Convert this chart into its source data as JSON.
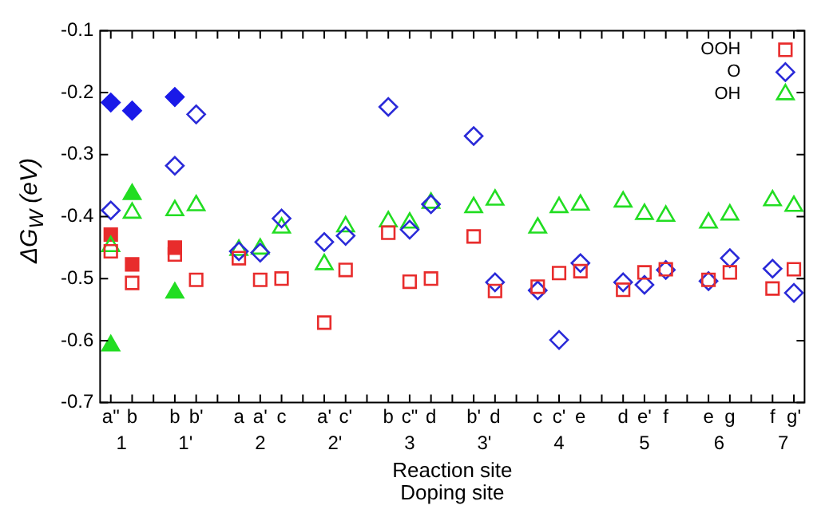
{
  "chart_data": {
    "type": "scatter",
    "xlabel": "Reaction site",
    "x2label": "Doping site",
    "ylabel": "ΔG$_{W}$ (eV)",
    "categories": [
      "a\"",
      "b",
      null,
      "b",
      "b'",
      null,
      "a",
      "a'",
      "c",
      null,
      "a'",
      "c'",
      null,
      "b",
      "c\"",
      "d",
      null,
      "b'",
      "d",
      null,
      "c",
      "c'",
      "e",
      null,
      "d",
      "e'",
      "f",
      null,
      "e",
      "g",
      null,
      "f",
      "g'"
    ],
    "annotations": [
      "1",
      "1'",
      "2",
      "2'",
      "3",
      "3'",
      "4",
      "5",
      "6",
      "7"
    ],
    "ylim": [
      -0.7,
      -0.1
    ],
    "yticks": [
      -0.7,
      -0.6,
      -0.5,
      -0.4,
      -0.3,
      -0.2,
      -0.1
    ],
    "grid": false,
    "legend": "top right",
    "series": [
      {
        "name": "OOH",
        "color": "#e82c2c",
        "marker": "square",
        "values": [
          -0.456,
          -0.507,
          null,
          -0.461,
          -0.502,
          null,
          -0.467,
          -0.502,
          -0.5,
          null,
          -0.571,
          -0.486,
          null,
          -0.426,
          -0.505,
          -0.5,
          null,
          -0.432,
          -0.52,
          null,
          -0.513,
          -0.491,
          -0.488,
          null,
          -0.518,
          -0.49,
          -0.485,
          null,
          -0.502,
          -0.49,
          null,
          -0.516,
          -0.485
        ]
      },
      {
        "name": "O",
        "color": "#2a2ad8",
        "marker": "diamond",
        "values": [
          -0.39,
          null,
          null,
          -0.318,
          -0.235,
          null,
          -0.456,
          -0.458,
          -0.403,
          null,
          -0.441,
          -0.431,
          null,
          -0.223,
          -0.421,
          -0.38,
          null,
          -0.27,
          -0.506,
          null,
          -0.519,
          -0.599,
          -0.475,
          null,
          -0.506,
          -0.51,
          -0.486,
          null,
          -0.504,
          -0.467,
          null,
          -0.484,
          -0.523
        ]
      },
      {
        "name": "OH",
        "color": "#22dd22",
        "marker": "triangle",
        "values": [
          -0.448,
          -0.394,
          null,
          -0.39,
          -0.382,
          null,
          -0.454,
          -0.452,
          -0.418,
          null,
          -0.477,
          -0.416,
          null,
          -0.408,
          -0.41,
          -0.378,
          null,
          -0.385,
          -0.373,
          null,
          -0.418,
          -0.385,
          -0.381,
          null,
          -0.376,
          -0.396,
          -0.399,
          null,
          -0.41,
          -0.397,
          null,
          -0.374,
          -0.383
        ]
      },
      {
        "color": "#e82c2c",
        "marker": "square",
        "values": [
          -0.429,
          -0.477,
          null,
          -0.45,
          null,
          null,
          null,
          null,
          null,
          null,
          null,
          null,
          null,
          null,
          null,
          null,
          null,
          null,
          null,
          null,
          null,
          null,
          null,
          null,
          null,
          null,
          null,
          null,
          null,
          null,
          null,
          null,
          null
        ]
      },
      {
        "color": "#1a1ae8",
        "marker": "diamond",
        "values": [
          -0.216,
          -0.229,
          null,
          -0.207,
          null,
          null,
          null,
          null,
          null,
          null,
          null,
          null,
          null,
          null,
          null,
          null,
          null,
          null,
          null,
          null,
          null,
          null,
          null,
          null,
          null,
          null,
          null,
          null,
          null,
          null,
          null,
          null,
          null
        ]
      },
      {
        "color": "#22dd22",
        "marker": "triangle",
        "values": [
          -0.608,
          -0.364,
          null,
          -0.523,
          null,
          null,
          null,
          null,
          null,
          null,
          null,
          null,
          null,
          null,
          null,
          null,
          null,
          null,
          null,
          null,
          null,
          null,
          null,
          null,
          null,
          null,
          null,
          null,
          null,
          null,
          null,
          null,
          null
        ]
      }
    ]
  }
}
